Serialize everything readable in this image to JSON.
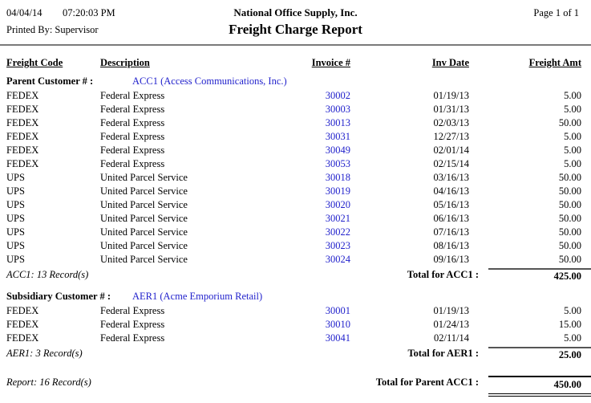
{
  "header": {
    "date": "04/04/14",
    "time": "07:20:03 PM",
    "printed_by": "Printed By: Supervisor",
    "company": "National Office Supply, Inc.",
    "title": "Freight Charge Report",
    "page_info": "Page 1 of 1"
  },
  "columns": [
    "Freight Code",
    "Description",
    "Invoice #",
    "Inv Date",
    "Freight Amt"
  ],
  "groups": [
    {
      "label": "Parent Customer # :",
      "link": "ACC1 (Access Communications, Inc.)",
      "rows": [
        {
          "code": "FEDEX",
          "description": "Federal Express",
          "invoice": "30002",
          "date": "01/19/13",
          "amount": "5.00"
        },
        {
          "code": "FEDEX",
          "description": "Federal Express",
          "invoice": "30003",
          "date": "01/31/13",
          "amount": "5.00"
        },
        {
          "code": "FEDEX",
          "description": "Federal Express",
          "invoice": "30013",
          "date": "02/03/13",
          "amount": "50.00"
        },
        {
          "code": "FEDEX",
          "description": "Federal Express",
          "invoice": "30031",
          "date": "12/27/13",
          "amount": "5.00"
        },
        {
          "code": "FEDEX",
          "description": "Federal Express",
          "invoice": "30049",
          "date": "02/01/14",
          "amount": "5.00"
        },
        {
          "code": "FEDEX",
          "description": "Federal Express",
          "invoice": "30053",
          "date": "02/15/14",
          "amount": "5.00"
        },
        {
          "code": "UPS",
          "description": "United Parcel Service",
          "invoice": "30018",
          "date": "03/16/13",
          "amount": "50.00"
        },
        {
          "code": "UPS",
          "description": "United Parcel Service",
          "invoice": "30019",
          "date": "04/16/13",
          "amount": "50.00"
        },
        {
          "code": "UPS",
          "description": "United Parcel Service",
          "invoice": "30020",
          "date": "05/16/13",
          "amount": "50.00"
        },
        {
          "code": "UPS",
          "description": "United Parcel Service",
          "invoice": "30021",
          "date": "06/16/13",
          "amount": "50.00"
        },
        {
          "code": "UPS",
          "description": "United Parcel Service",
          "invoice": "30022",
          "date": "07/16/13",
          "amount": "50.00"
        },
        {
          "code": "UPS",
          "description": "United Parcel Service",
          "invoice": "30023",
          "date": "08/16/13",
          "amount": "50.00"
        },
        {
          "code": "UPS",
          "description": "United Parcel Service",
          "invoice": "30024",
          "date": "09/16/13",
          "amount": "50.00"
        }
      ],
      "record_text": "ACC1: 13 Record(s)",
      "total_label": "Total for ACC1 :",
      "total_amount": "425.00"
    },
    {
      "label": "Subsidiary Customer # :",
      "link": "AER1 (Acme Emporium Retail)",
      "rows": [
        {
          "code": "FEDEX",
          "description": "Federal Express",
          "invoice": "30001",
          "date": "01/19/13",
          "amount": "5.00"
        },
        {
          "code": "FEDEX",
          "description": "Federal Express",
          "invoice": "30010",
          "date": "01/24/13",
          "amount": "15.00"
        },
        {
          "code": "FEDEX",
          "description": "Federal Express",
          "invoice": "30041",
          "date": "02/11/14",
          "amount": "5.00"
        }
      ],
      "record_text": "AER1: 3 Record(s)",
      "total_label": "Total for AER1 :",
      "total_amount": "25.00"
    }
  ],
  "report_total": {
    "record_text": "Report: 16 Record(s)",
    "total_label": "Total for Parent ACC1 :",
    "total_amount": "450.00"
  },
  "colors": {
    "link_blue": "#2222cc",
    "header_rule_gray": "#7a7a7a",
    "subtotal_rule": "#555555"
  }
}
